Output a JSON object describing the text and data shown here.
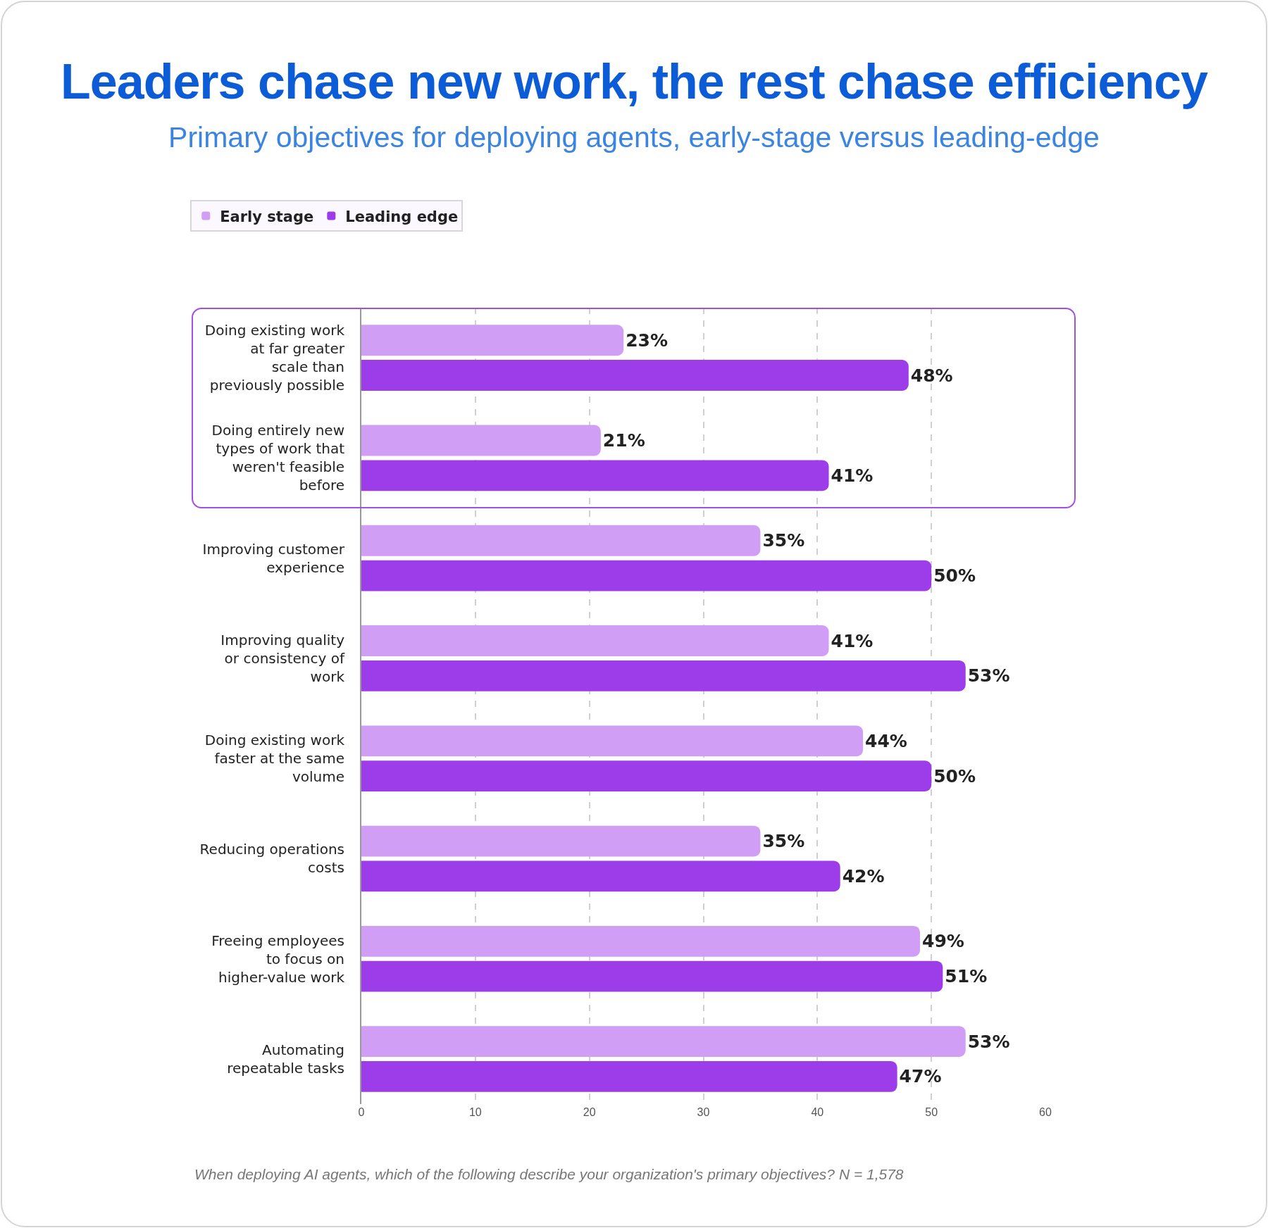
{
  "chart_data": {
    "type": "bar",
    "orientation": "horizontal",
    "title": "Leaders chase new work, the rest chase efficiency",
    "subtitle": "Primary objectives for deploying agents, early-stage versus leading-edge",
    "categories": [
      "Doing existing work at far greater scale than previously possible",
      "Doing entirely new types of work that weren't feasible before",
      "Improving customer experience",
      "Improving quality or consistency of work",
      "Doing existing work faster at the same volume",
      "Reducing operations costs",
      "Freeing employees to focus on higher-value work",
      "Automating repeatable tasks"
    ],
    "series": [
      {
        "name": "Early stage",
        "color": "#d09ef4",
        "values": [
          23,
          21,
          35,
          41,
          44,
          35,
          49,
          53
        ],
        "value_labels": [
          "23%",
          "21%",
          "35%",
          "41%",
          "44%",
          "35%",
          "49%",
          "53%"
        ]
      },
      {
        "name": "Leading edge",
        "color": "#9d3de9",
        "values": [
          48,
          41,
          50,
          53,
          50,
          42,
          51,
          47
        ],
        "value_labels": [
          "48%",
          "41%",
          "50%",
          "53%",
          "50%",
          "42%",
          "51%",
          "47%"
        ]
      }
    ],
    "xlim": [
      0,
      60
    ],
    "xticks": [
      0,
      10,
      20,
      30,
      40,
      50,
      60
    ],
    "grid": "x",
    "legend": "top left",
    "annotations": [
      "When deploying AI agents, which of the following describe your organization's primary objectives? N = 1,578"
    ]
  }
}
